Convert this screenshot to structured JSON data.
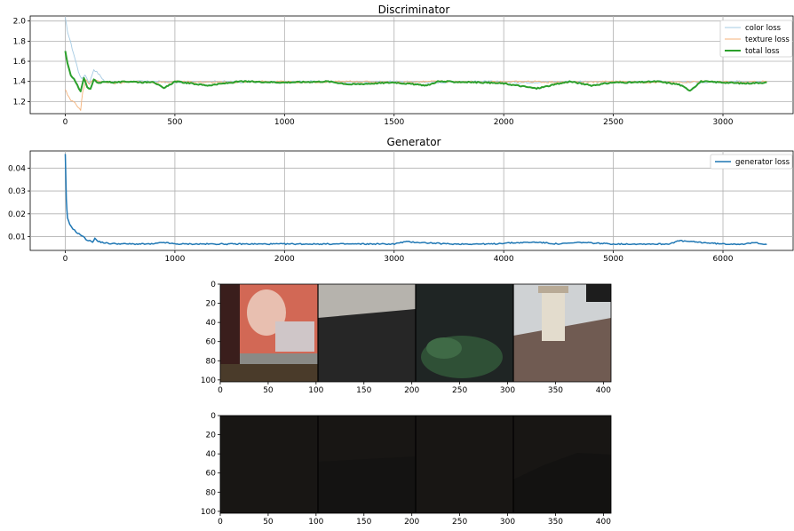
{
  "chart_data": [
    {
      "type": "line",
      "title": "Discriminator",
      "xlabel": "",
      "ylabel": "",
      "xlim": [
        -160,
        3320
      ],
      "ylim": [
        1.08,
        2.05
      ],
      "xticks": [
        0,
        500,
        1000,
        1500,
        2000,
        2500,
        3000
      ],
      "yticks": [
        1.2,
        1.4,
        1.6,
        1.8,
        2.0
      ],
      "ytick_labels": [
        "1.2",
        "1.4",
        "1.6",
        "1.8",
        "2.0"
      ],
      "grid": true,
      "legend_position": "top-right",
      "colors": {
        "color loss": "#a6cbe3",
        "texture loss": "#f5b27a",
        "total loss": "#2ca02c"
      },
      "series": [
        {
          "name": "color loss",
          "x": [
            0,
            10,
            25,
            45,
            60,
            75,
            90,
            110,
            130,
            150,
            180,
            220,
            300,
            400,
            500,
            700,
            900,
            1100,
            1300,
            1500,
            1700,
            1900,
            2100,
            2300,
            2500,
            2700,
            2900,
            3100,
            3200
          ],
          "y": [
            2.03,
            1.9,
            1.78,
            1.62,
            1.5,
            1.42,
            1.47,
            1.38,
            1.52,
            1.48,
            1.4,
            1.39,
            1.4,
            1.4,
            1.39,
            1.4,
            1.39,
            1.4,
            1.39,
            1.4,
            1.39,
            1.4,
            1.39,
            1.4,
            1.39,
            1.4,
            1.39,
            1.4,
            1.4
          ]
        },
        {
          "name": "texture loss",
          "x": [
            0,
            10,
            25,
            45,
            60,
            70,
            80,
            95,
            110,
            130,
            150,
            180,
            220,
            300,
            400,
            500,
            700,
            900,
            1100,
            1300,
            1500,
            1700,
            1900,
            2100,
            2300,
            2500,
            2700,
            2900,
            3100,
            3200
          ],
          "y": [
            1.33,
            1.27,
            1.22,
            1.18,
            1.14,
            1.12,
            1.3,
            1.42,
            1.38,
            1.42,
            1.4,
            1.39,
            1.38,
            1.4,
            1.39,
            1.4,
            1.39,
            1.4,
            1.39,
            1.4,
            1.39,
            1.4,
            1.39,
            1.4,
            1.39,
            1.4,
            1.39,
            1.4,
            1.39,
            1.4
          ]
        },
        {
          "name": "total loss",
          "x": [
            0,
            10,
            25,
            40,
            55,
            70,
            85,
            100,
            115,
            130,
            150,
            180,
            220,
            300,
            360,
            400,
            450,
            500,
            650,
            800,
            1000,
            1200,
            1300,
            1500,
            1650,
            1700,
            1900,
            2000,
            2150,
            2300,
            2400,
            2500,
            2600,
            2700,
            2800,
            2850,
            2900,
            3000,
            3100,
            3200
          ],
          "y": [
            1.7,
            1.58,
            1.46,
            1.42,
            1.36,
            1.3,
            1.44,
            1.34,
            1.33,
            1.42,
            1.38,
            1.4,
            1.39,
            1.4,
            1.39,
            1.4,
            1.33,
            1.4,
            1.36,
            1.4,
            1.39,
            1.4,
            1.37,
            1.39,
            1.36,
            1.4,
            1.39,
            1.38,
            1.33,
            1.4,
            1.36,
            1.39,
            1.39,
            1.4,
            1.37,
            1.31,
            1.4,
            1.39,
            1.38,
            1.39
          ]
        }
      ]
    },
    {
      "type": "line",
      "title": "Generator",
      "xlabel": "",
      "ylabel": "",
      "xlim": [
        -320,
        6640
      ],
      "ylim": [
        0.004,
        0.0475
      ],
      "xticks": [
        0,
        1000,
        2000,
        3000,
        4000,
        5000,
        6000
      ],
      "yticks": [
        0.01,
        0.02,
        0.03,
        0.04
      ],
      "ytick_labels": [
        "0.01",
        "0.02",
        "0.03",
        "0.04"
      ],
      "grid": true,
      "legend_position": "top-right",
      "colors": {
        "generator loss": "#1f77b4"
      },
      "series": [
        {
          "name": "generator loss",
          "x": [
            0,
            10,
            20,
            40,
            70,
            100,
            150,
            200,
            250,
            270,
            300,
            350,
            400,
            600,
            800,
            900,
            1000,
            1500,
            1800,
            2000,
            2500,
            3000,
            3100,
            3500,
            3900,
            4000,
            4300,
            4500,
            4700,
            5000,
            5500,
            5600,
            6000,
            6200,
            6300,
            6400
          ],
          "y": [
            0.046,
            0.026,
            0.018,
            0.0155,
            0.0135,
            0.012,
            0.0105,
            0.0085,
            0.0078,
            0.0092,
            0.0079,
            0.0074,
            0.007,
            0.0068,
            0.0068,
            0.0075,
            0.0068,
            0.0068,
            0.0068,
            0.0068,
            0.0068,
            0.0068,
            0.0078,
            0.0068,
            0.0068,
            0.0072,
            0.0076,
            0.0068,
            0.0075,
            0.0068,
            0.0068,
            0.0082,
            0.0068,
            0.0068,
            0.0074,
            0.0066
          ]
        }
      ]
    },
    {
      "type": "image",
      "xlim": [
        0,
        408
      ],
      "ylim": [
        102,
        0
      ],
      "xticks": [
        0,
        50,
        100,
        150,
        200,
        250,
        300,
        350,
        400
      ],
      "yticks": [
        0,
        20,
        40,
        60,
        80,
        100
      ],
      "panel_dividers": [
        102,
        204,
        306
      ],
      "content": [
        "magazine",
        "wall",
        "foliage",
        "chimney-rooftop"
      ]
    },
    {
      "type": "image",
      "xlim": [
        0,
        408
      ],
      "ylim": [
        102,
        0
      ],
      "xticks": [
        0,
        50,
        100,
        150,
        200,
        250,
        300,
        350,
        400
      ],
      "yticks": [
        0,
        20,
        40,
        60,
        80,
        100
      ],
      "panel_dividers": [
        102,
        204,
        306
      ],
      "content": [
        "dark",
        "dark",
        "dark",
        "dark"
      ]
    }
  ]
}
